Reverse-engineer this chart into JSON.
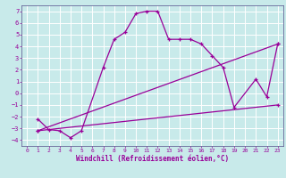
{
  "xlabel": "Windchill (Refroidissement éolien,°C)",
  "bg_color": "#c8eaea",
  "line_color": "#990099",
  "grid_color": "#ffffff",
  "spine_color": "#666699",
  "xlim": [
    -0.5,
    23.5
  ],
  "ylim": [
    -4.5,
    7.5
  ],
  "yticks": [
    -4,
    -3,
    -2,
    -1,
    0,
    1,
    2,
    3,
    4,
    5,
    6,
    7
  ],
  "xticks": [
    0,
    1,
    2,
    3,
    4,
    5,
    6,
    7,
    8,
    9,
    10,
    11,
    12,
    13,
    14,
    15,
    16,
    17,
    18,
    19,
    20,
    21,
    22,
    23
  ],
  "line1_x": [
    1,
    2,
    3,
    4,
    5,
    7,
    8,
    9,
    10,
    11,
    12,
    13,
    14,
    15,
    16,
    17,
    18,
    19,
    21,
    22,
    23
  ],
  "line1_y": [
    -2.2,
    -3.1,
    -3.2,
    -3.8,
    -3.2,
    2.2,
    4.6,
    5.2,
    6.8,
    7.0,
    7.0,
    4.6,
    4.6,
    4.6,
    4.2,
    3.2,
    2.2,
    -1.2,
    1.2,
    -0.3,
    4.2
  ],
  "line2_x": [
    1,
    23
  ],
  "line2_y": [
    -3.2,
    -1.0
  ],
  "line3_x": [
    1,
    23
  ],
  "line3_y": [
    -3.2,
    4.2
  ],
  "marker": "+"
}
